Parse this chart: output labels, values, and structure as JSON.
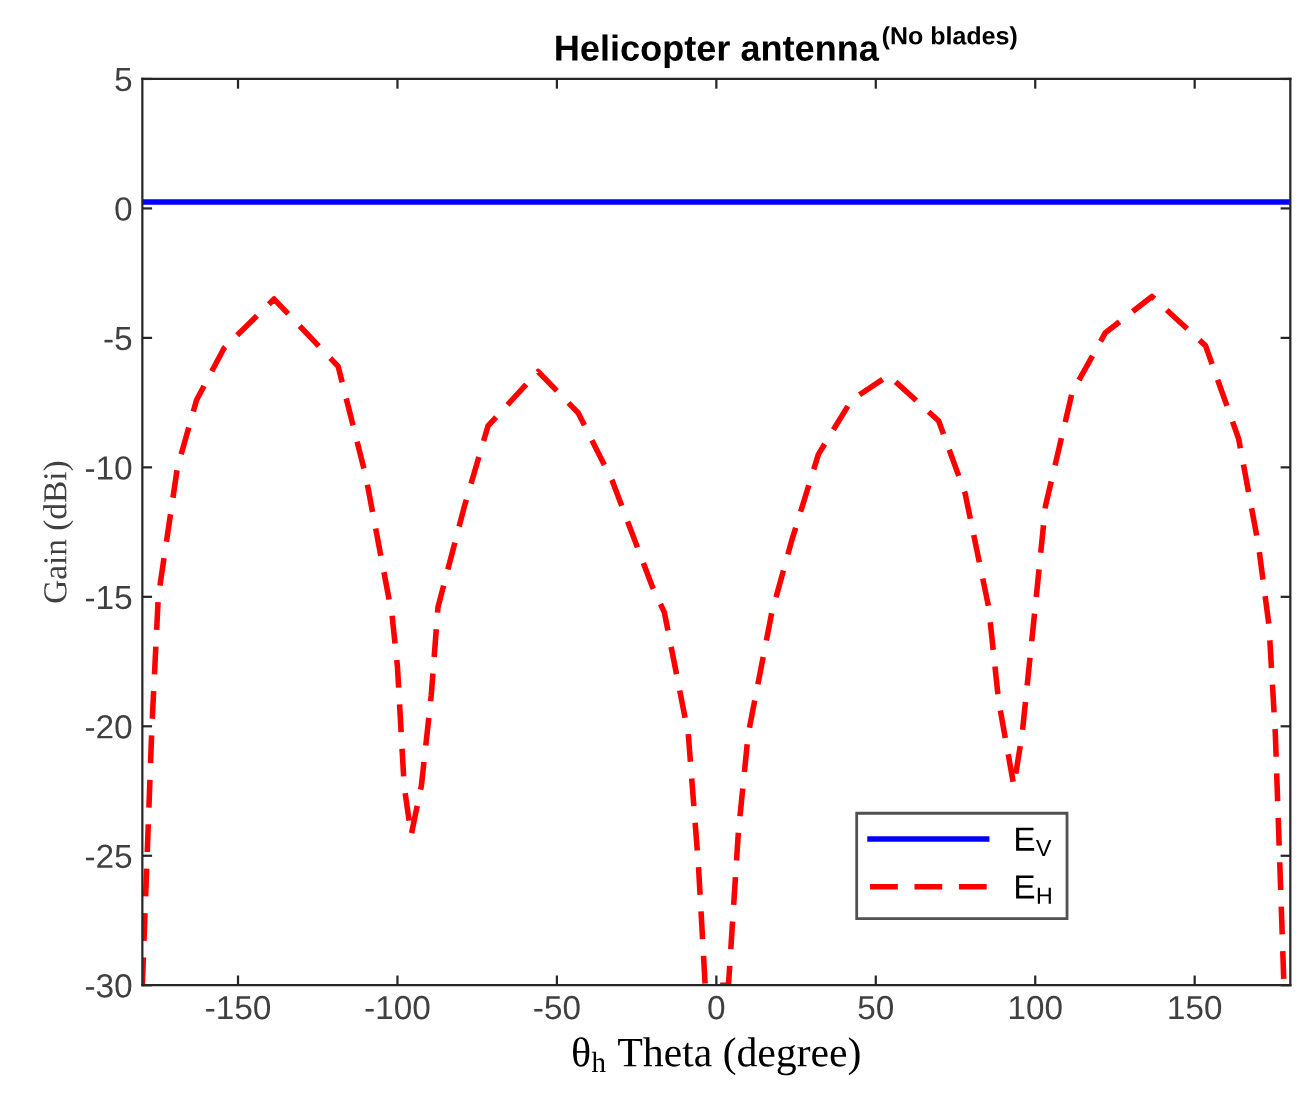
{
  "chart_data": {
    "type": "line",
    "title": "Helicopter antenna$^{(No blades)}$",
    "xlabel": "θ$_{h}$ Theta (degree)",
    "ylabel": "Gain (dBi)",
    "xlim": [
      -180,
      180
    ],
    "xticks": [
      -150,
      -100,
      -50,
      0,
      50,
      100,
      150
    ],
    "ylim": [
      -30,
      5
    ],
    "yticks": [
      -30,
      -25,
      -20,
      -15,
      -10,
      -5,
      0,
      5
    ],
    "grid": false,
    "legend": "bottom right",
    "series": [
      {
        "name": "E$_{V}$",
        "color": "#0000ff",
        "line_style": "solid",
        "x": [
          -180,
          180
        ],
        "values": [
          0.25,
          0.25
        ]
      },
      {
        "name": "E$_{H}$",
        "color": "#ff0000",
        "line_style": "dashed",
        "x": [
          -180,
          -177,
          -175,
          -169,
          -163,
          -154.4,
          -138.7,
          -118.6,
          -110,
          -101.7,
          -100,
          -97.9,
          -95.7,
          -92.5,
          -89.4,
          -87.3,
          -79,
          -71.6,
          -55.9,
          -43.3,
          -32.7,
          -20.1,
          -16.3,
          -8.8,
          -5.6,
          -3.5,
          3.8,
          6.9,
          10,
          17.4,
          23.7,
          32,
          42.4,
          54,
          69.7,
          78,
          85.4,
          88.5,
          93.3,
          95.9,
          100,
          103.2,
          111.6,
          122,
          136.6,
          153.4,
          163.8,
          170,
          173.3,
          175.3,
          178
        ],
        "values": [
          -30,
          -20,
          -15,
          -10,
          -7.4,
          -5.4,
          -3.5,
          -6.1,
          -10.3,
          -15.7,
          -17.7,
          -22.3,
          -24.2,
          -22.3,
          -18.8,
          -15.4,
          -11.5,
          -8.4,
          -6.3,
          -7.9,
          -10.5,
          -14.6,
          -15.6,
          -20.3,
          -25.4,
          -30,
          -30,
          -24.1,
          -20.3,
          -15.6,
          -12.8,
          -9.5,
          -7.4,
          -6.45,
          -8.2,
          -11,
          -15.4,
          -19,
          -22.3,
          -20.3,
          -15.4,
          -11.5,
          -7.1,
          -4.8,
          -3.4,
          -5.3,
          -8.9,
          -13,
          -16.1,
          -20.3,
          -30
        ]
      }
    ]
  }
}
